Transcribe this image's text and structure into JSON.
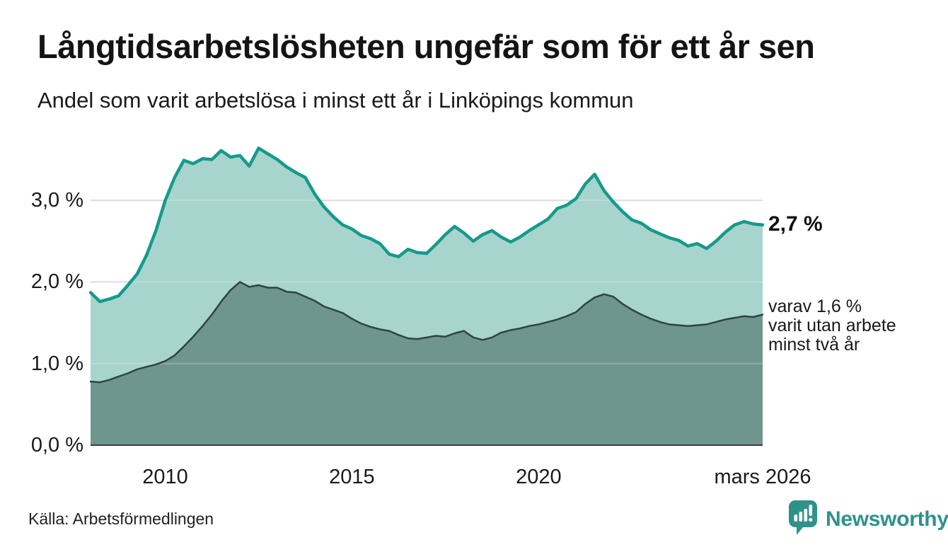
{
  "header": {
    "title": "Långtidsarbetslösheten ungefär som för ett år sen",
    "subtitle": "Andel som varit arbetslösa i minst ett år i Linköpings kommun"
  },
  "chart_data": {
    "type": "area",
    "title": "Långtidsarbetslösheten ungefär som för ett år sen",
    "xlabel": "",
    "ylabel": "",
    "x_range": [
      2008,
      2026
    ],
    "ylim": [
      0,
      3.8
    ],
    "grid": true,
    "unit": "%",
    "x_axis": {
      "ticks": [
        {
          "x": 2010,
          "label": "2010"
        },
        {
          "x": 2015,
          "label": "2015"
        },
        {
          "x": 2020,
          "label": "2020"
        },
        {
          "x": 2026,
          "label": "mars 2026"
        }
      ]
    },
    "y_axis": {
      "ticks": [
        {
          "value": 0,
          "label": "0,0 %"
        },
        {
          "value": 1,
          "label": "1,0 %"
        },
        {
          "value": 2,
          "label": "2,0 %"
        },
        {
          "value": 3,
          "label": "3,0 %"
        }
      ]
    },
    "x": [
      2008,
      2008.25,
      2008.5,
      2008.75,
      2009,
      2009.25,
      2009.5,
      2009.75,
      2010,
      2010.25,
      2010.5,
      2010.75,
      2011,
      2011.25,
      2011.5,
      2011.75,
      2012,
      2012.25,
      2012.5,
      2012.75,
      2013,
      2013.25,
      2013.5,
      2013.75,
      2014,
      2014.25,
      2014.5,
      2014.75,
      2015,
      2015.25,
      2015.5,
      2015.75,
      2016,
      2016.25,
      2016.5,
      2016.75,
      2017,
      2017.25,
      2017.5,
      2017.75,
      2018,
      2018.25,
      2018.5,
      2018.75,
      2019,
      2019.25,
      2019.5,
      2019.75,
      2020,
      2020.25,
      2020.5,
      2020.75,
      2021,
      2021.25,
      2021.5,
      2021.75,
      2022,
      2022.25,
      2022.5,
      2022.75,
      2023,
      2023.25,
      2023.5,
      2023.75,
      2024,
      2024.25,
      2024.5,
      2024.75,
      2025,
      2025.25,
      2025.5,
      2025.75,
      2026
    ],
    "series": [
      {
        "id": "arbetslosa-minst-ett-ar",
        "end_value": "2,7 %",
        "line_color": "#159a8b",
        "fill_color": "#a7d4cc",
        "values": [
          1.87,
          1.76,
          1.79,
          1.83,
          1.96,
          2.1,
          2.33,
          2.63,
          3.0,
          3.28,
          3.49,
          3.45,
          3.51,
          3.5,
          3.61,
          3.53,
          3.55,
          3.42,
          3.64,
          3.57,
          3.5,
          3.41,
          3.34,
          3.28,
          3.08,
          2.92,
          2.8,
          2.7,
          2.65,
          2.57,
          2.53,
          2.47,
          2.34,
          2.31,
          2.4,
          2.36,
          2.35,
          2.46,
          2.58,
          2.68,
          2.6,
          2.5,
          2.58,
          2.63,
          2.55,
          2.49,
          2.55,
          2.63,
          2.7,
          2.77,
          2.9,
          2.94,
          3.02,
          3.2,
          3.32,
          3.12,
          2.98,
          2.86,
          2.76,
          2.72,
          2.64,
          2.59,
          2.54,
          2.51,
          2.44,
          2.47,
          2.41,
          2.5,
          2.61,
          2.7,
          2.74,
          2.71,
          2.7
        ]
      },
      {
        "id": "arbetslosa-minst-tva-ar",
        "end_value": "1,6 %",
        "line_color": "#2f443f",
        "fill_color": "#6f968e",
        "values": [
          0.78,
          0.77,
          0.8,
          0.84,
          0.88,
          0.93,
          0.96,
          0.99,
          1.03,
          1.1,
          1.21,
          1.33,
          1.46,
          1.6,
          1.76,
          1.9,
          2.0,
          1.94,
          1.96,
          1.93,
          1.93,
          1.88,
          1.87,
          1.82,
          1.77,
          1.7,
          1.66,
          1.62,
          1.55,
          1.49,
          1.45,
          1.42,
          1.4,
          1.35,
          1.31,
          1.3,
          1.32,
          1.34,
          1.33,
          1.37,
          1.4,
          1.32,
          1.29,
          1.32,
          1.38,
          1.41,
          1.43,
          1.46,
          1.48,
          1.51,
          1.54,
          1.58,
          1.63,
          1.73,
          1.81,
          1.85,
          1.82,
          1.73,
          1.66,
          1.6,
          1.55,
          1.51,
          1.48,
          1.47,
          1.46,
          1.47,
          1.48,
          1.51,
          1.54,
          1.56,
          1.58,
          1.57,
          1.6
        ]
      }
    ],
    "colors": {
      "grid": "#dcdce2",
      "baseline": "#3d3d3d",
      "accent": "#159a8b"
    },
    "legend_position": "none"
  },
  "annotations": {
    "total_end_value": "2,7 %",
    "subset_note": "varav 1,6 %\nvarit utan arbete\nminst två år"
  },
  "footer": {
    "source": "Källa: Arbetsförmedlingen",
    "brand": "Newsworthy"
  }
}
